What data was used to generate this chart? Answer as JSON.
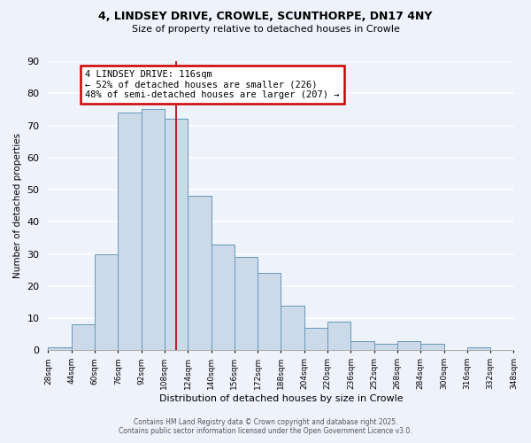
{
  "title_line1": "4, LINDSEY DRIVE, CROWLE, SCUNTHORPE, DN17 4NY",
  "title_line2": "Size of property relative to detached houses in Crowle",
  "xlabel": "Distribution of detached houses by size in Crowle",
  "ylabel": "Number of detached properties",
  "bar_color": "#ccd9e8",
  "bar_edge_color": "#6699bb",
  "background_color": "#eef2fb",
  "grid_color": "#ffffff",
  "bin_edges": [
    28,
    44,
    60,
    76,
    92,
    108,
    124,
    140,
    156,
    172,
    188,
    204,
    220,
    236,
    252,
    268,
    284,
    300,
    316,
    332,
    348
  ],
  "bin_labels": [
    "28sqm",
    "44sqm",
    "60sqm",
    "76sqm",
    "92sqm",
    "108sqm",
    "124sqm",
    "140sqm",
    "156sqm",
    "172sqm",
    "188sqm",
    "204sqm",
    "220sqm",
    "236sqm",
    "252sqm",
    "268sqm",
    "284sqm",
    "300sqm",
    "316sqm",
    "332sqm",
    "348sqm"
  ],
  "counts": [
    1,
    8,
    30,
    74,
    75,
    72,
    48,
    33,
    29,
    24,
    14,
    7,
    9,
    3,
    2,
    3,
    2,
    0,
    1,
    0
  ],
  "property_size": 116,
  "property_label": "4 LINDSEY DRIVE: 116sqm",
  "pct_smaller": 52,
  "n_smaller": 226,
  "pct_larger": 48,
  "n_larger": 207,
  "annotation_box_color": "#ffffff",
  "annotation_border_color": "#cc0000",
  "vline_color": "#aa0000",
  "ylim": [
    0,
    90
  ],
  "yticks": [
    0,
    10,
    20,
    30,
    40,
    50,
    60,
    70,
    80,
    90
  ],
  "footer_line1": "Contains HM Land Registry data © Crown copyright and database right 2025.",
  "footer_line2": "Contains public sector information licensed under the Open Government Licence v3.0."
}
